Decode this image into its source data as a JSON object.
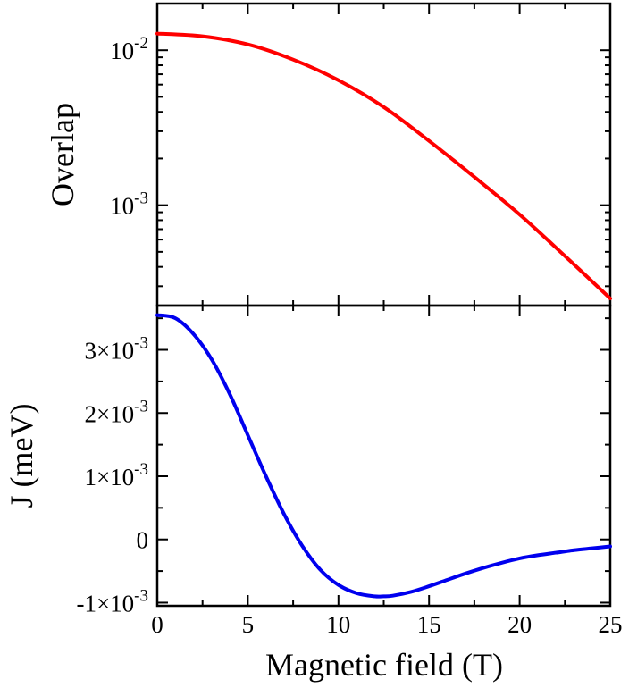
{
  "chart_data": [
    {
      "type": "line",
      "ylabel": "Overlap",
      "xlabel": "",
      "yscale": "log",
      "xlim": [
        0,
        25
      ],
      "ylim": [
        0.000225,
        0.02
      ],
      "x_ticks": [
        "0",
        "5",
        "10",
        "15",
        "20",
        "25"
      ],
      "y_tick_labels": [
        {
          "value": 0.01,
          "base": "10",
          "exp": "-2"
        },
        {
          "value": 0.001,
          "base": "10",
          "exp": "-3"
        }
      ],
      "grid": false,
      "legend": "none",
      "series": [
        {
          "color": "#ff0000",
          "x": [
            0,
            2.5,
            5,
            7.5,
            10,
            12.5,
            15,
            17.5,
            20,
            22.5,
            25
          ],
          "y": [
            0.0128,
            0.0123,
            0.0109,
            0.0087,
            0.0064,
            0.0043,
            0.0026,
            0.00152,
            0.00087,
            0.00047,
            0.00025
          ]
        }
      ]
    },
    {
      "type": "line",
      "ylabel": "J (meV)",
      "xlabel": "Magnetic field (T)",
      "xlim": [
        0,
        25
      ],
      "ylim": [
        -0.00105,
        0.0037
      ],
      "x_ticks": [
        "0",
        "5",
        "10",
        "15",
        "20",
        "25"
      ],
      "y_tick_labels": [
        {
          "value": 0.003,
          "mant": "3×10",
          "exp": "-3"
        },
        {
          "value": 0.002,
          "mant": "2×10",
          "exp": "-3"
        },
        {
          "value": 0.001,
          "mant": "1×10",
          "exp": "-3"
        },
        {
          "value": 0,
          "mant": "0",
          "exp": ""
        },
        {
          "value": -0.001,
          "mant": "-1×10",
          "exp": "-3"
        }
      ],
      "grid": false,
      "legend": "none",
      "series": [
        {
          "color": "#0000ee",
          "x": [
            0,
            1,
            2,
            3,
            4,
            5,
            6,
            7,
            8,
            9,
            10,
            11,
            12,
            12.5,
            13,
            14,
            15,
            16,
            17,
            18,
            19,
            20,
            21,
            22,
            23,
            24,
            25
          ],
          "y": [
            0.00355,
            0.0035,
            0.00325,
            0.00285,
            0.0023,
            0.00165,
            0.001,
            0.0004,
            -0.0001,
            -0.00048,
            -0.00072,
            -0.00085,
            -0.0009,
            -0.0009,
            -0.00089,
            -0.00083,
            -0.00074,
            -0.00064,
            -0.00054,
            -0.00045,
            -0.00037,
            -0.0003,
            -0.00025,
            -0.00021,
            -0.00017,
            -0.00014,
            -0.00011
          ]
        }
      ]
    }
  ]
}
